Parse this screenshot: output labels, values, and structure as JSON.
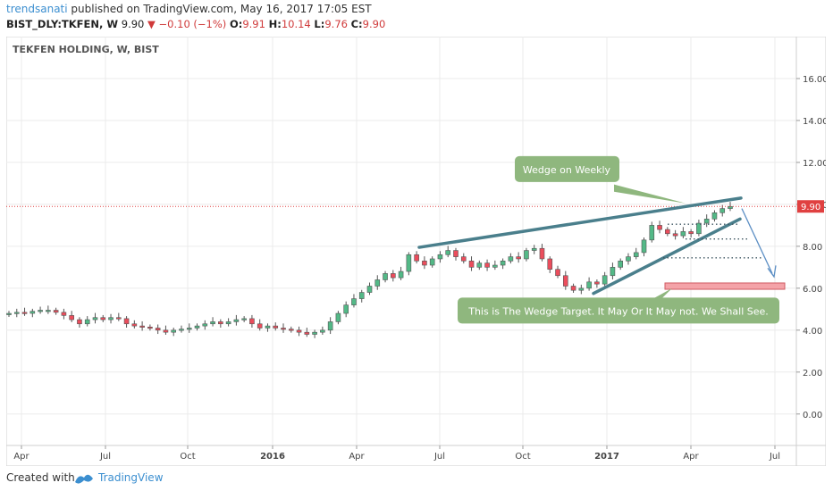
{
  "header": {
    "author": "trendsanati",
    "published": "published on TradingView.com, May 16, 2017 17:05 EST",
    "symbol": "BIST_DLY:TKFEN, W",
    "last": "9.90",
    "change": "−0.10 (−1%)",
    "o_label": "O:",
    "o_value": "9.91",
    "h_label": "H:",
    "h_value": "10.14",
    "l_label": "L:",
    "l_value": "9.76",
    "c_label": "C:",
    "c_value": "9.90"
  },
  "footer": {
    "created_with": "Created with",
    "brand": "TradingView"
  },
  "colors": {
    "up": "#53b987",
    "down": "#eb4d5c",
    "trend": "#4a7f8c",
    "arrow": "#5b8ec4",
    "price_line": "#e04040",
    "target": "#f4a3a8",
    "note_bg": "#8fb77e"
  },
  "chart_data": {
    "type": "candlestick",
    "title": "TEKFEN HOLDING, W, BIST",
    "ylim": [
      -1.5,
      18
    ],
    "y_ticks": [
      0,
      2,
      4,
      6,
      8,
      10,
      12,
      14,
      16
    ],
    "y_tick_labels": [
      "0.00",
      "2.00",
      "4.00",
      "6.00",
      "8.00",
      "10.00",
      "12.00",
      "14.00",
      "16.00"
    ],
    "x_labels": [
      "Apr",
      "Jul",
      "Oct",
      "2016",
      "Apr",
      "Jul",
      "Oct",
      "2017",
      "Apr",
      "Jul"
    ],
    "last_price": 9.9,
    "last_price_label": "9.90",
    "close_series": [
      4.8,
      4.85,
      4.8,
      4.9,
      4.95,
      4.95,
      4.85,
      4.7,
      4.5,
      4.3,
      4.5,
      4.6,
      4.5,
      4.6,
      4.55,
      4.3,
      4.2,
      4.15,
      4.1,
      4.0,
      3.9,
      4.0,
      4.05,
      4.1,
      4.2,
      4.3,
      4.4,
      4.3,
      4.4,
      4.5,
      4.55,
      4.3,
      4.1,
      4.2,
      4.1,
      4.05,
      4.0,
      3.9,
      3.8,
      3.9,
      4.0,
      4.4,
      4.8,
      5.2,
      5.5,
      5.8,
      6.1,
      6.4,
      6.7,
      6.5,
      6.8,
      7.6,
      7.3,
      7.1,
      7.4,
      7.6,
      7.8,
      7.5,
      7.3,
      7.0,
      7.2,
      7.0,
      7.1,
      7.3,
      7.5,
      7.4,
      7.8,
      7.9,
      7.4,
      6.9,
      6.6,
      6.1,
      5.9,
      6.0,
      6.3,
      6.2,
      6.6,
      7.0,
      7.3,
      7.5,
      7.7,
      8.3,
      9.0,
      8.8,
      8.6,
      8.5,
      8.7,
      8.6,
      9.1,
      9.3,
      9.6,
      9.8,
      9.9
    ],
    "annotations": [
      {
        "text": "Wedge on Weekly"
      },
      {
        "text": "This is The Wedge Target. It May Or It May not. We Shall See."
      }
    ]
  }
}
